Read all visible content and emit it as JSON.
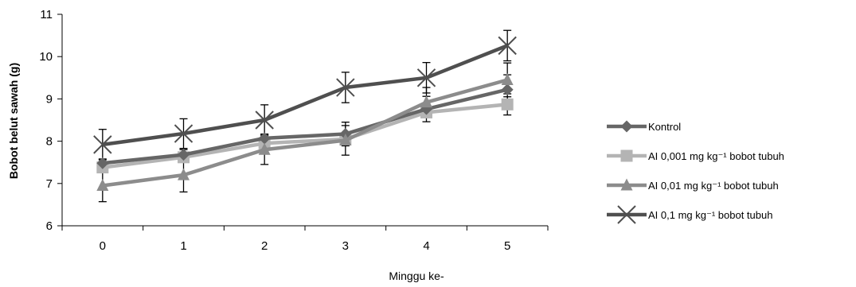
{
  "chart_data": {
    "type": "line",
    "xlabel": "Minggu ke-",
    "ylabel": "Bobot belut sawah (g)",
    "x": [
      0,
      1,
      2,
      3,
      4,
      5
    ],
    "ylim": [
      6,
      11
    ],
    "yticks": [
      6,
      7,
      8,
      9,
      10,
      11
    ],
    "grid": false,
    "legend_position": "right",
    "series": [
      {
        "name": "Kontrol",
        "marker": "diamond",
        "color": "#666666",
        "values": [
          7.48,
          7.68,
          8.07,
          8.17,
          8.76,
          9.22
        ],
        "errors": [
          0.1,
          0.12,
          0.1,
          0.28,
          0.3,
          0.35
        ]
      },
      {
        "name": "AI 0,001 mg kg⁻¹  bobot tubuh",
        "marker": "square",
        "color": "#b4b4b4",
        "values": [
          7.38,
          7.62,
          7.95,
          8.05,
          8.68,
          8.87
        ],
        "errors": [
          0.1,
          0.12,
          0.1,
          0.1,
          0.1,
          0.25
        ]
      },
      {
        "name": "AI 0,01 mg kg⁻¹  bobot tubuh",
        "marker": "triangle",
        "color": "#8c8c8c",
        "values": [
          6.95,
          7.2,
          7.8,
          8.02,
          8.92,
          9.45
        ],
        "errors": [
          0.38,
          0.4,
          0.35,
          0.35,
          0.35,
          0.4
        ]
      },
      {
        "name": "AI 0,1 mg kg⁻¹  bobot tubuh",
        "marker": "x",
        "color": "#4f4f4f",
        "values": [
          7.92,
          8.18,
          8.5,
          9.27,
          9.5,
          10.26
        ],
        "errors": [
          0.36,
          0.35,
          0.36,
          0.36,
          0.36,
          0.36
        ]
      }
    ]
  }
}
